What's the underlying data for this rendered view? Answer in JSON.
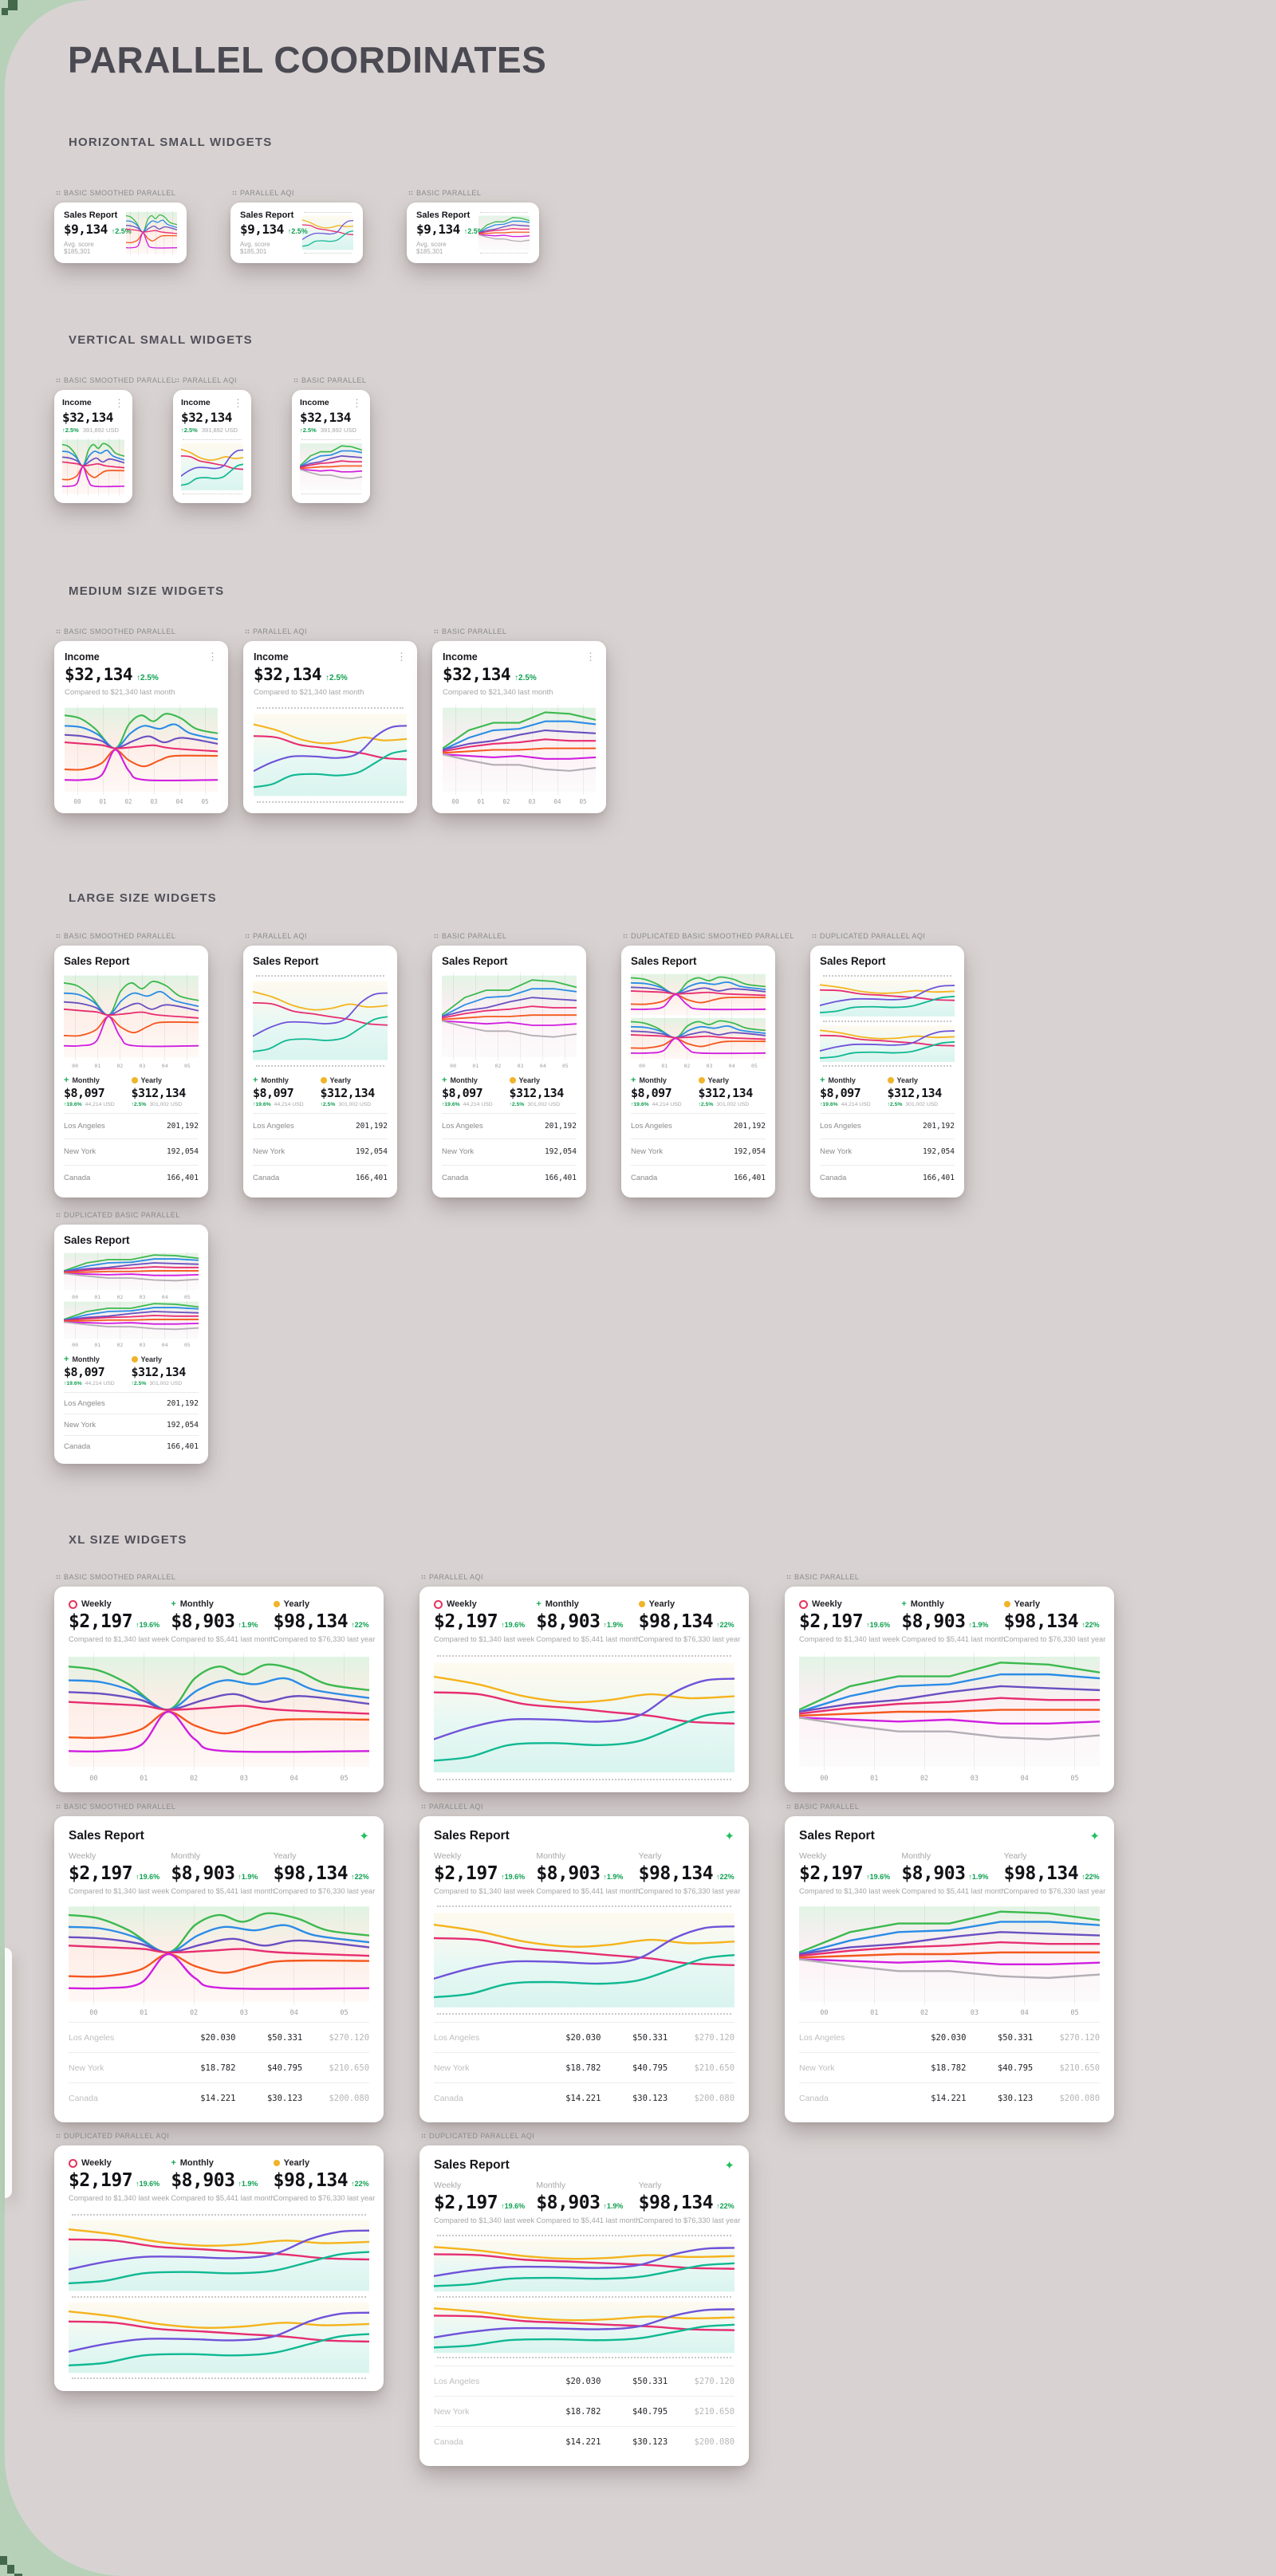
{
  "page": {
    "title": "PARALLEL COORDINATES"
  },
  "sections": [
    {
      "title": "HORIZONTAL SMALL WIDGETS"
    },
    {
      "title": "VERTICAL SMALL WIDGETS"
    },
    {
      "title": "MEDIUM SIZE WIDGETS"
    },
    {
      "title": "LARGE SIZE WIDGETS"
    },
    {
      "title": "XL SIZE WIDGETS"
    }
  ],
  "icons": {
    "kebab": "⋮",
    "sparkle": "✦",
    "plus": "+"
  },
  "axis_labels": [
    "00",
    "01",
    "02",
    "03",
    "04",
    "05"
  ],
  "hs": {
    "title": "Sales Report",
    "value": "$9,134",
    "delta": "↑2.5%",
    "sub": "Avg. score $185,301"
  },
  "vs": {
    "title": "Income",
    "value": "$32,134",
    "delta": "↑2.5%",
    "sub": "391,892 USD"
  },
  "md": {
    "title": "Income",
    "value": "$32,134",
    "delta": "↑2.5%",
    "sub": "Compared to $21,340 last month"
  },
  "lg": {
    "title": "Sales Report",
    "legend": [
      {
        "icon": "plus",
        "label": "Monthly",
        "value": "$8,097",
        "delta": "↑19.6%",
        "sub": "44,214 USD"
      },
      {
        "icon": "dot",
        "label": "Yearly",
        "value": "$312,134",
        "delta": "↑2.5%",
        "sub": "301,002 USD"
      }
    ],
    "table": [
      {
        "name": "Los Angeles",
        "value": "201,192"
      },
      {
        "name": "New York",
        "value": "192,054"
      },
      {
        "name": "Canada",
        "value": "166,401"
      }
    ]
  },
  "xl": {
    "title": "Sales Report",
    "stats": [
      {
        "icon": "ring",
        "label": "Weekly",
        "value": "$2,197",
        "delta": "↑19.6%",
        "sub": "Compared to $1,340 last week"
      },
      {
        "icon": "plus",
        "label": "Monthly",
        "value": "$8,903",
        "delta": "↑1.9%",
        "sub": "Compared to $5,441 last month"
      },
      {
        "icon": "dot",
        "label": "Yearly",
        "value": "$98,134",
        "delta": "↑22%",
        "sub": "Compared to $76,330 last year"
      }
    ],
    "table": [
      {
        "name": "Los Angeles",
        "v1": "$20.030",
        "v2": "$50.331",
        "v3": "$270.120"
      },
      {
        "name": "New York",
        "v1": "$18.782",
        "v2": "$40.795",
        "v3": "$210.650"
      },
      {
        "name": "Canada",
        "v1": "$14.221",
        "v2": "$30.123",
        "v3": "$200.080"
      }
    ]
  },
  "widgets": [
    {
      "id": "hs-1",
      "kind": "hs",
      "label": "BASIC SMOOTHED PARALLEL",
      "chart": "smoothed",
      "deco": "grid"
    },
    {
      "id": "hs-2",
      "kind": "hs",
      "label": "PARALLEL AQI",
      "chart": "aqi",
      "deco": "dots"
    },
    {
      "id": "hs-3",
      "kind": "hs",
      "label": "BASIC PARALLEL",
      "chart": "basic",
      "deco": "dots"
    },
    {
      "id": "vs-1",
      "kind": "vs",
      "label": "BASIC SMOOTHED PARALLEL",
      "chart": "smoothed",
      "deco": "grid"
    },
    {
      "id": "vs-2",
      "kind": "vs",
      "label": "PARALLEL AQI",
      "chart": "aqi",
      "deco": "dots"
    },
    {
      "id": "vs-3",
      "kind": "vs",
      "label": "BASIC PARALLEL",
      "chart": "basic",
      "deco": "dots"
    },
    {
      "id": "md-1",
      "kind": "md",
      "label": "BASIC SMOOTHED PARALLEL",
      "chart": "smoothed",
      "deco": "grid",
      "axis": true
    },
    {
      "id": "md-2",
      "kind": "md",
      "label": "PARALLEL AQI",
      "chart": "aqi",
      "deco": "dots"
    },
    {
      "id": "md-3",
      "kind": "md",
      "label": "BASIC PARALLEL",
      "chart": "basic",
      "deco": "grid",
      "axis": true
    },
    {
      "id": "lg-1",
      "kind": "lg",
      "label": "BASIC SMOOTHED PARALLEL",
      "chart": "smoothed",
      "deco": "grid",
      "axis": true
    },
    {
      "id": "lg-2",
      "kind": "lg",
      "label": "PARALLEL AQI",
      "chart": "aqi",
      "deco": "dots"
    },
    {
      "id": "lg-3",
      "kind": "lg",
      "label": "BASIC PARALLEL",
      "chart": "basic",
      "deco": "grid",
      "axis": true
    },
    {
      "id": "lg-4",
      "kind": "lg",
      "label": "DUPLICATED BASIC SMOOTHED PARALLEL",
      "chart": "smoothed",
      "deco": "grid",
      "axis": true,
      "dup": true
    },
    {
      "id": "lg-5",
      "kind": "lg",
      "label": "DUPLICATED PARALLEL AQI",
      "chart": "aqi",
      "deco": "dots",
      "dup": true
    },
    {
      "id": "lg-6",
      "kind": "lg",
      "label": "DUPLICATED BASIC PARALLEL",
      "chart": "basic",
      "deco": "grid",
      "axis": "both",
      "dup": true
    },
    {
      "id": "xla-1",
      "kind": "xla",
      "label": "BASIC SMOOTHED PARALLEL",
      "chart": "smoothed",
      "deco": "grid",
      "axis": true
    },
    {
      "id": "xla-2",
      "kind": "xla",
      "label": "PARALLEL AQI",
      "chart": "aqi",
      "deco": "dots"
    },
    {
      "id": "xla-3",
      "kind": "xla",
      "label": "BASIC PARALLEL",
      "chart": "basic",
      "deco": "grid",
      "axis": true
    },
    {
      "id": "xlb-1",
      "kind": "xlb",
      "label": "BASIC SMOOTHED PARALLEL",
      "chart": "smoothed",
      "deco": "grid",
      "axis": true
    },
    {
      "id": "xlb-2",
      "kind": "xlb",
      "label": "PARALLEL AQI",
      "chart": "aqi",
      "deco": "dots"
    },
    {
      "id": "xlb-3",
      "kind": "xlb",
      "label": "BASIC PARALLEL",
      "chart": "basic",
      "deco": "grid",
      "axis": true
    },
    {
      "id": "xla-4",
      "kind": "xla",
      "label": "DUPLICATED PARALLEL AQI",
      "chart": "aqi",
      "deco": "dots",
      "dup": true
    },
    {
      "id": "xlb-4",
      "kind": "xlb",
      "label": "DUPLICATED PARALLEL AQI",
      "chart": "aqi",
      "deco": "dots",
      "dup": true
    }
  ],
  "colors": {
    "canvas": "#d8d3d2",
    "background_green": "#b7d1b9",
    "pixel_green": "#44694a",
    "accent_green": "#0fa050",
    "lines": {
      "green": "#3cb94f",
      "blue": "#2b8ce6",
      "purple": "#6a4fc1",
      "pink": "#e72d70",
      "orange": "#f4581e",
      "magenta": "#cf1ee0",
      "gray": "#b3aeb4",
      "amber": "#f5b31c",
      "violet": "#6f52d9",
      "teal": "#0fb892"
    }
  },
  "charts": {
    "smoothed": {
      "smooth": true,
      "wash": [
        [
          0,
          "#3cb94f",
          0.16
        ],
        [
          0.5,
          "#f4581e",
          0.1
        ],
        [
          1,
          "#f4581e",
          0.04
        ]
      ],
      "series": [
        {
          "color": "green",
          "points": [
            [
              0,
              7
            ],
            [
              10,
              9
            ],
            [
              20,
              16
            ],
            [
              33,
              29
            ],
            [
              42,
              13
            ],
            [
              50,
              7
            ],
            [
              58,
              11
            ],
            [
              66,
              6
            ],
            [
              76,
              9
            ],
            [
              86,
              16
            ],
            [
              100,
              19
            ]
          ]
        },
        {
          "color": "blue",
          "points": [
            [
              0,
              14
            ],
            [
              11,
              15
            ],
            [
              22,
              20
            ],
            [
              33,
              29
            ],
            [
              43,
              19
            ],
            [
              52,
              14
            ],
            [
              62,
              16
            ],
            [
              72,
              13
            ],
            [
              82,
              19
            ],
            [
              100,
              23
            ]
          ]
        },
        {
          "color": "purple",
          "points": [
            [
              0,
              20
            ],
            [
              12,
              21
            ],
            [
              24,
              24
            ],
            [
              33,
              29
            ],
            [
              45,
              24
            ],
            [
              55,
              21
            ],
            [
              65,
              25
            ],
            [
              77,
              22
            ],
            [
              100,
              26
            ]
          ]
        },
        {
          "color": "pink",
          "points": [
            [
              0,
              25
            ],
            [
              13,
              26
            ],
            [
              25,
              27
            ],
            [
              33,
              29
            ],
            [
              47,
              28
            ],
            [
              58,
              27
            ],
            [
              70,
              29
            ],
            [
              100,
              31
            ]
          ]
        },
        {
          "color": "orange",
          "points": [
            [
              0,
              43
            ],
            [
              12,
              43
            ],
            [
              24,
              39
            ],
            [
              33,
              30
            ],
            [
              42,
              37
            ],
            [
              52,
              41
            ],
            [
              62,
              37
            ],
            [
              72,
              34
            ],
            [
              100,
              34
            ]
          ]
        },
        {
          "color": "magenta",
          "points": [
            [
              0,
              50
            ],
            [
              12,
              50
            ],
            [
              24,
              47
            ],
            [
              33,
              30
            ],
            [
              42,
              44
            ],
            [
              52,
              50
            ],
            [
              100,
              50
            ]
          ]
        }
      ]
    },
    "aqi": {
      "smooth": true,
      "wash": [
        [
          0,
          "#f5b31c",
          0.07
        ],
        [
          0.55,
          "#0fb892",
          0.1
        ],
        [
          1,
          "#0fb892",
          0.16
        ]
      ],
      "series": [
        {
          "color": "amber",
          "points": [
            [
              0,
              9
            ],
            [
              15,
              13
            ],
            [
              30,
              19
            ],
            [
              45,
              22
            ],
            [
              58,
              21
            ],
            [
              72,
              18
            ],
            [
              85,
              20
            ],
            [
              100,
              19
            ]
          ]
        },
        {
          "color": "pink",
          "points": [
            [
              0,
              17
            ],
            [
              15,
              18
            ],
            [
              30,
              23
            ],
            [
              45,
              25
            ],
            [
              58,
              27
            ],
            [
              72,
              29
            ],
            [
              85,
              32
            ],
            [
              100,
              33
            ]
          ]
        },
        {
          "color": "violet",
          "points": [
            [
              0,
              41
            ],
            [
              12,
              35
            ],
            [
              25,
              31
            ],
            [
              40,
              31
            ],
            [
              55,
              32
            ],
            [
              68,
              29
            ],
            [
              80,
              17
            ],
            [
              90,
              11
            ],
            [
              100,
              10
            ]
          ]
        },
        {
          "color": "teal",
          "points": [
            [
              0,
              52
            ],
            [
              12,
              50
            ],
            [
              25,
              44
            ],
            [
              40,
              43
            ],
            [
              55,
              44
            ],
            [
              68,
              42
            ],
            [
              80,
              35
            ],
            [
              90,
              29
            ],
            [
              100,
              27
            ]
          ]
        }
      ]
    },
    "basic": {
      "smooth": false,
      "wash": [
        [
          0,
          "#3cb94f",
          0.15
        ],
        [
          0.55,
          "#e72d70",
          0.06
        ],
        [
          1,
          "#b3aeb4",
          0.05
        ]
      ],
      "series": [
        {
          "color": "green",
          "points": [
            [
              0,
              29
            ],
            [
              17,
              17
            ],
            [
              33,
              12
            ],
            [
              50,
              12
            ],
            [
              67,
              5
            ],
            [
              83,
              6
            ],
            [
              100,
              10
            ]
          ]
        },
        {
          "color": "blue",
          "points": [
            [
              0,
              30
            ],
            [
              17,
              22
            ],
            [
              33,
              17
            ],
            [
              50,
              16
            ],
            [
              67,
              11
            ],
            [
              83,
              11
            ],
            [
              100,
              13
            ]
          ]
        },
        {
          "color": "purple",
          "points": [
            [
              0,
              30
            ],
            [
              17,
              26
            ],
            [
              33,
              24
            ],
            [
              50,
              20
            ],
            [
              67,
              17
            ],
            [
              83,
              18
            ],
            [
              100,
              19
            ]
          ]
        },
        {
          "color": "pink",
          "points": [
            [
              0,
              31
            ],
            [
              17,
              28
            ],
            [
              33,
              26
            ],
            [
              50,
              25
            ],
            [
              67,
              23
            ],
            [
              83,
              24
            ],
            [
              100,
              24
            ]
          ]
        },
        {
          "color": "orange",
          "points": [
            [
              0,
              32
            ],
            [
              17,
              31
            ],
            [
              33,
              30
            ],
            [
              50,
              30
            ],
            [
              67,
              29
            ],
            [
              83,
              29
            ],
            [
              100,
              29
            ]
          ]
        },
        {
          "color": "magenta",
          "points": [
            [
              0,
              33
            ],
            [
              17,
              34
            ],
            [
              33,
              35
            ],
            [
              50,
              34
            ],
            [
              67,
              36
            ],
            [
              83,
              36
            ],
            [
              100,
              35
            ]
          ]
        },
        {
          "color": "gray",
          "points": [
            [
              0,
              33
            ],
            [
              17,
              37
            ],
            [
              33,
              40
            ],
            [
              50,
              40
            ],
            [
              67,
              43
            ],
            [
              83,
              44
            ],
            [
              100,
              42
            ]
          ]
        }
      ]
    }
  }
}
